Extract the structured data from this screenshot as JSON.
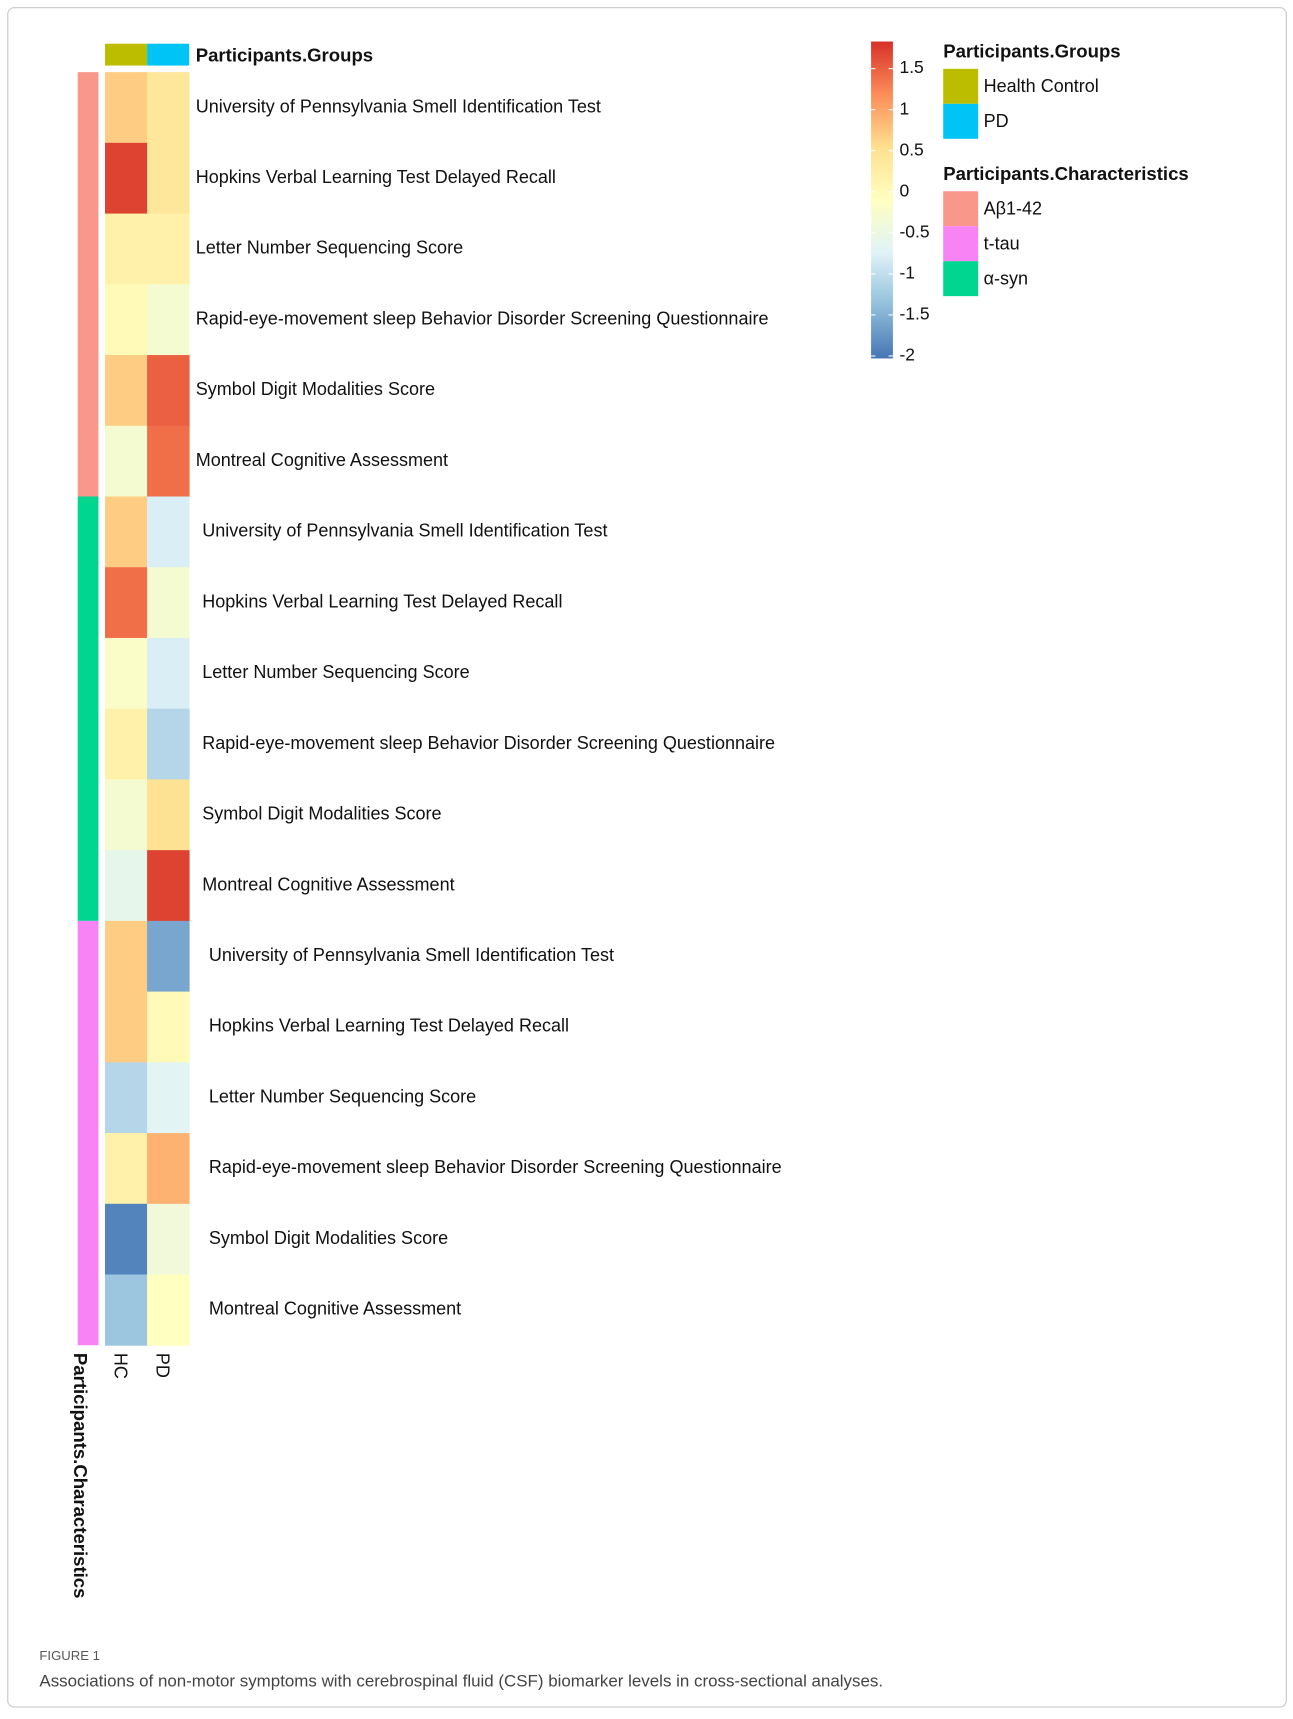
{
  "chart_data": {
    "type": "heatmap",
    "columns": [
      "HC",
      "PD"
    ],
    "column_annotation": {
      "title": "Participants.Groups",
      "groups": [
        {
          "name": "Health Control",
          "color": "#BDBD00"
        },
        {
          "name": "PD",
          "color": "#00C4F5"
        }
      ]
    },
    "row_annotation_title": "Participants.Characteristics",
    "row_groups": [
      {
        "name": "Aβ1-42",
        "color": "#F8978A",
        "rows": [
          "University of Pennsylvania Smell Identification Test",
          "Hopkins Verbal Learning Test Delayed Recall",
          "Letter Number Sequencing Score",
          "Rapid-eye-movement sleep Behavior Disorder Screening Questionnaire",
          "Symbol Digit Modalities Score",
          "Montreal Cognitive Assessment"
        ],
        "values": [
          [
            0.7,
            0.4
          ],
          [
            1.7,
            0.4
          ],
          [
            0.2,
            0.2
          ],
          [
            0,
            -0.3
          ],
          [
            0.7,
            1.5
          ],
          [
            -0.3,
            1.4
          ]
        ]
      },
      {
        "name": "α-syn",
        "color": "#00D68F",
        "rows": [
          "University of Pennsylvania Smell Identification Test",
          "Hopkins Verbal Learning Test Delayed Recall",
          "Letter Number Sequencing Score",
          "Rapid-eye-movement sleep Behavior Disorder Screening Questionnaire",
          "Symbol Digit Modalities Score",
          "Montreal Cognitive Assessment"
        ],
        "values": [
          [
            0.7,
            -0.8
          ],
          [
            1.4,
            -0.3
          ],
          [
            -0.2,
            -0.8
          ],
          [
            0.2,
            -1.1
          ],
          [
            -0.3,
            0.5
          ],
          [
            -0.6,
            1.7
          ]
        ]
      },
      {
        "name": "t-tau",
        "color": "#F783F5",
        "rows": [
          "University of Pennsylvania Smell Identification Test",
          "Hopkins Verbal Learning Test Delayed Recall",
          "Letter Number Sequencing Score",
          "Rapid-eye-movement sleep Behavior Disorder Screening Questionnaire",
          "Symbol Digit Modalities Score",
          "Montreal Cognitive Assessment"
        ],
        "values": [
          [
            0.7,
            -1.6
          ],
          [
            0.7,
            0
          ],
          [
            -1.1,
            -0.7
          ],
          [
            0.2,
            0.9
          ],
          [
            -1.9,
            -0.4
          ],
          [
            -1.3,
            -0.1
          ]
        ]
      }
    ],
    "zlim": [
      -2.03,
      1.83
    ],
    "zticks": [
      1.5,
      1,
      0.5,
      0,
      -0.5,
      -1,
      -1.5,
      -2
    ],
    "colorscale": [
      "#4575B4",
      "#91BFDB",
      "#E0F3F8",
      "#FFFFBF",
      "#FEE090",
      "#FC8D59",
      "#D73027"
    ]
  },
  "figure": {
    "label": "FIGURE 1",
    "caption": "Associations of non-motor symptoms with cerebrospinal fluid (CSF) biomarker levels in cross-sectional analyses."
  }
}
